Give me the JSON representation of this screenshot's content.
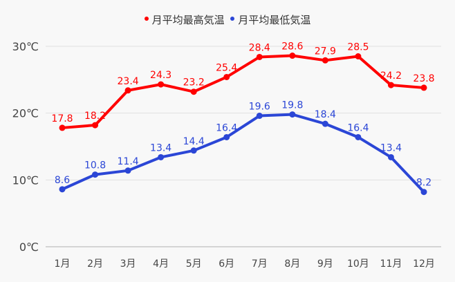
{
  "chart_data": {
    "type": "line",
    "title": "",
    "categories": [
      "1月",
      "2月",
      "3月",
      "4月",
      "5月",
      "6月",
      "7月",
      "8月",
      "9月",
      "10月",
      "11月",
      "12月"
    ],
    "series": [
      {
        "name": "月平均最高気温",
        "color": "#ff0000",
        "values": [
          17.8,
          18.2,
          23.4,
          24.3,
          23.2,
          25.4,
          28.4,
          28.6,
          27.9,
          28.5,
          24.2,
          23.8
        ]
      },
      {
        "name": "月平均最低気温",
        "color": "#2b46d6",
        "values": [
          8.6,
          10.8,
          11.4,
          13.4,
          14.4,
          16.4,
          19.6,
          19.8,
          18.4,
          16.4,
          13.4,
          8.2
        ]
      }
    ],
    "xlabel": "",
    "ylabel": "",
    "ylim": [
      0,
      30
    ],
    "yticks": [
      0,
      10,
      20,
      30
    ],
    "ytick_labels": [
      "0℃",
      "10℃",
      "20℃",
      "30℃"
    ],
    "grid": true,
    "legend_position": "top",
    "data_labels": true
  },
  "legend": {
    "items": [
      {
        "label": "月平均最高気温",
        "color": "#ff0000"
      },
      {
        "label": "月平均最低気温",
        "color": "#2b46d6"
      }
    ]
  }
}
